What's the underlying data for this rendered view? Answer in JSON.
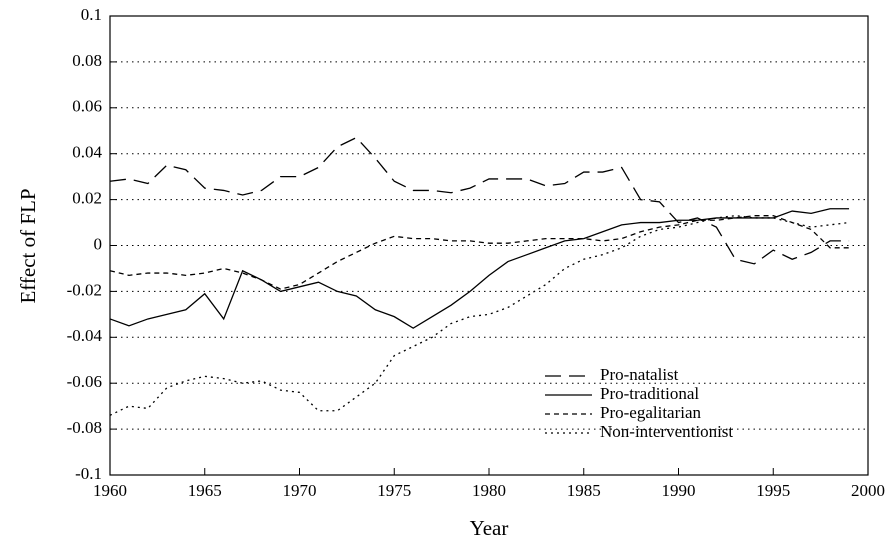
{
  "chart_data": {
    "type": "line",
    "x_label": "Year",
    "y_label": "Effect of FLP",
    "x": [
      1960,
      1961,
      1962,
      1963,
      1964,
      1965,
      1966,
      1967,
      1968,
      1969,
      1970,
      1971,
      1972,
      1973,
      1974,
      1975,
      1976,
      1977,
      1978,
      1979,
      1980,
      1981,
      1982,
      1983,
      1984,
      1985,
      1986,
      1987,
      1988,
      1989,
      1990,
      1991,
      1992,
      1993,
      1994,
      1995,
      1996,
      1997,
      1998,
      1999
    ],
    "series": [
      {
        "name": "Pro-natalist",
        "color": "#000000",
        "dash": "16,8",
        "values": [
          0.028,
          0.029,
          0.027,
          0.035,
          0.033,
          0.025,
          0.024,
          0.022,
          0.024,
          0.03,
          0.03,
          0.034,
          0.043,
          0.047,
          0.038,
          0.028,
          0.024,
          0.024,
          0.023,
          0.025,
          0.029,
          0.029,
          0.029,
          0.026,
          0.027,
          0.032,
          0.032,
          0.034,
          0.02,
          0.019,
          0.01,
          0.012,
          0.008,
          -0.006,
          -0.008,
          -0.002,
          -0.006,
          -0.003,
          0.002,
          0.002
        ]
      },
      {
        "name": "Pro-traditional",
        "color": "#000000",
        "dash": "none",
        "values": [
          -0.032,
          -0.035,
          -0.032,
          -0.03,
          -0.028,
          -0.021,
          -0.032,
          -0.011,
          -0.015,
          -0.02,
          -0.018,
          -0.016,
          -0.02,
          -0.022,
          -0.028,
          -0.031,
          -0.036,
          -0.031,
          -0.026,
          -0.02,
          -0.013,
          -0.007,
          -0.004,
          -0.001,
          0.002,
          0.003,
          0.006,
          0.009,
          0.01,
          0.01,
          0.011,
          0.011,
          0.012,
          0.012,
          0.012,
          0.012,
          0.015,
          0.014,
          0.016,
          0.016
        ]
      },
      {
        "name": "Pro-egalitarian",
        "color": "#000000",
        "dash": "5,4",
        "values": [
          -0.011,
          -0.013,
          -0.012,
          -0.012,
          -0.013,
          -0.012,
          -0.01,
          -0.012,
          -0.015,
          -0.019,
          -0.017,
          -0.012,
          -0.007,
          -0.003,
          0.001,
          0.004,
          0.003,
          0.003,
          0.002,
          0.002,
          0.001,
          0.001,
          0.002,
          0.003,
          0.003,
          0.003,
          0.002,
          0.003,
          0.006,
          0.008,
          0.009,
          0.011,
          0.011,
          0.012,
          0.013,
          0.013,
          0.01,
          0.007,
          -0.001,
          -0.001
        ]
      },
      {
        "name": "Non-interventionist",
        "color": "#000000",
        "dash": "2,4",
        "values": [
          -0.074,
          -0.07,
          -0.071,
          -0.062,
          -0.059,
          -0.057,
          -0.058,
          -0.06,
          -0.059,
          -0.063,
          -0.064,
          -0.072,
          -0.072,
          -0.066,
          -0.06,
          -0.048,
          -0.044,
          -0.04,
          -0.034,
          -0.031,
          -0.03,
          -0.027,
          -0.022,
          -0.017,
          -0.01,
          -0.006,
          -0.004,
          -0.001,
          0.004,
          0.007,
          0.008,
          0.01,
          0.012,
          0.013,
          0.012,
          0.012,
          0.01,
          0.008,
          0.009,
          0.01
        ]
      }
    ],
    "xlim": [
      1960,
      2000
    ],
    "xticks": [
      1960,
      1965,
      1970,
      1975,
      1980,
      1985,
      1990,
      1995,
      2000
    ],
    "ylim": [
      -0.1,
      0.1
    ],
    "yticks": [
      -0.1,
      -0.08,
      -0.06,
      -0.04,
      -0.02,
      0,
      0.02,
      0.04,
      0.06,
      0.08,
      0.1
    ],
    "grid": true,
    "legend": "lower right"
  }
}
